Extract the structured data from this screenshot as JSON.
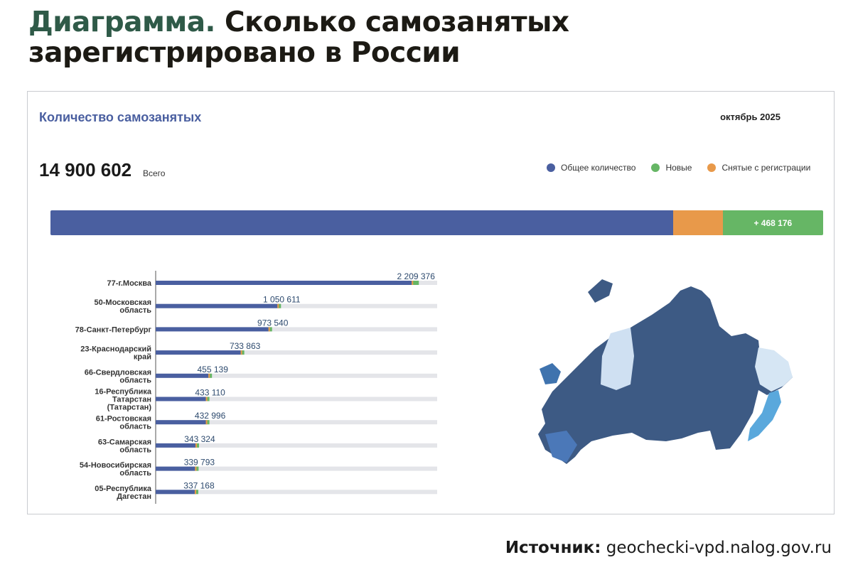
{
  "headline": {
    "prefix": "Диаграмма.",
    "text": "Сколько самозанятых зарегистрировано в России"
  },
  "panel": {
    "title": "Количество самозанятых",
    "period": "октябрь 2025",
    "total": "14 900 602",
    "total_label": "Всего"
  },
  "legend": [
    {
      "label": "Общее количество",
      "color": "#4a5fa0"
    },
    {
      "label": "Новые",
      "color": "#66b665"
    },
    {
      "label": "Снятые с регистрации",
      "color": "#e8994a"
    }
  ],
  "total_bar": {
    "new_label": "+ 468 176",
    "share_total": 0.806,
    "share_removed": 0.064,
    "share_new": 0.13
  },
  "chart_data": {
    "type": "bar",
    "orientation": "horizontal",
    "categories": [
      "77-г.Москва",
      "50-Московская область",
      "78-Санкт-Петербург",
      "23-Краснодарский край",
      "66-Свердловская область",
      "16-Республика Татарстан (Татарстан)",
      "61-Ростовская область",
      "63-Самарская область",
      "54-Новосибирская область",
      "05-Республика Дагестан"
    ],
    "label_lines": [
      [
        "77-г.Москва"
      ],
      [
        "50-Московская",
        "область"
      ],
      [
        "78-Санкт-Петербург"
      ],
      [
        "23-Краснодарский",
        "край"
      ],
      [
        "66-Свердловская",
        "область"
      ],
      [
        "16-Республика",
        "Татарстан",
        "(Татарстан)"
      ],
      [
        "61-Ростовская",
        "область"
      ],
      [
        "63-Самарская",
        "область"
      ],
      [
        "54-Новосибирская",
        "область"
      ],
      [
        "05-Республика",
        "Дагестан"
      ]
    ],
    "values": [
      2209376,
      1050611,
      973540,
      733863,
      455139,
      433110,
      432996,
      343324,
      339793,
      337168
    ],
    "value_labels": [
      "2 209 376",
      "1 050 611",
      "973 540",
      "733 863",
      "455 139",
      "433 110",
      "432 996",
      "343 324",
      "339 793",
      "337 168"
    ],
    "xlim": [
      0,
      2300000
    ]
  },
  "source": {
    "label": "Источник:",
    "text": "geochecki-vpd.nalog.gov.ru"
  }
}
